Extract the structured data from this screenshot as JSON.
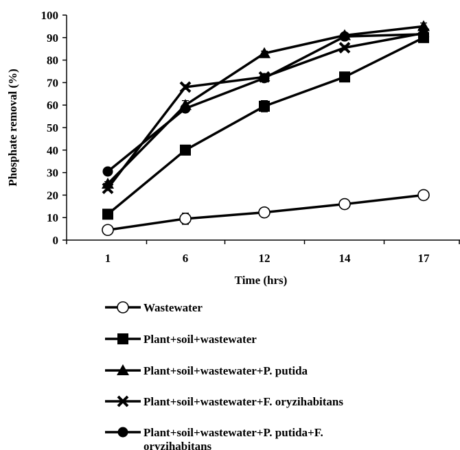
{
  "chart_data": {
    "type": "line",
    "title": "",
    "xlabel": "Time (hrs)",
    "ylabel": "Phosphate removal (%)",
    "categories": [
      "1",
      "6",
      "12",
      "14",
      "17"
    ],
    "ylim": [
      0,
      100
    ],
    "yticks": [
      0,
      10,
      20,
      30,
      40,
      50,
      60,
      70,
      80,
      90,
      100
    ],
    "grid": false,
    "legend": "bottom",
    "series": [
      {
        "name": "Wastewater",
        "marker": "open-circle",
        "values": [
          4.5,
          9.5,
          12.3,
          16,
          20
        ],
        "errors": [
          2,
          2.5,
          1.5,
          1.5,
          1.5
        ]
      },
      {
        "name": "Plant+soil+wastewater",
        "marker": "square",
        "values": [
          11.5,
          40,
          59.5,
          72.5,
          90
        ],
        "errors": [
          1,
          1,
          2.5,
          1.5,
          1.5
        ]
      },
      {
        "name": "Plant+soil+wastewater+P. putida",
        "marker": "triangle",
        "values": [
          25,
          60,
          83,
          91,
          95
        ],
        "errors": [
          1,
          2,
          1,
          1,
          1.5
        ]
      },
      {
        "name": "Plant+soil+wastewater+F. oryzihabitans",
        "marker": "x",
        "values": [
          23,
          68,
          72.5,
          85.5,
          92
        ],
        "errors": [
          1,
          1,
          1,
          1,
          1
        ]
      },
      {
        "name": "Plant+soil+wastewater+P. putida+F. oryzihabitans",
        "name_lines": [
          "Plant+soil+wastewater+P. putida+F.",
          "oryzihabitans"
        ],
        "marker": "circle",
        "values": [
          30.5,
          58.5,
          72,
          90.5,
          91.5
        ],
        "errors": [
          1,
          1.5,
          1,
          1,
          1
        ]
      }
    ]
  }
}
